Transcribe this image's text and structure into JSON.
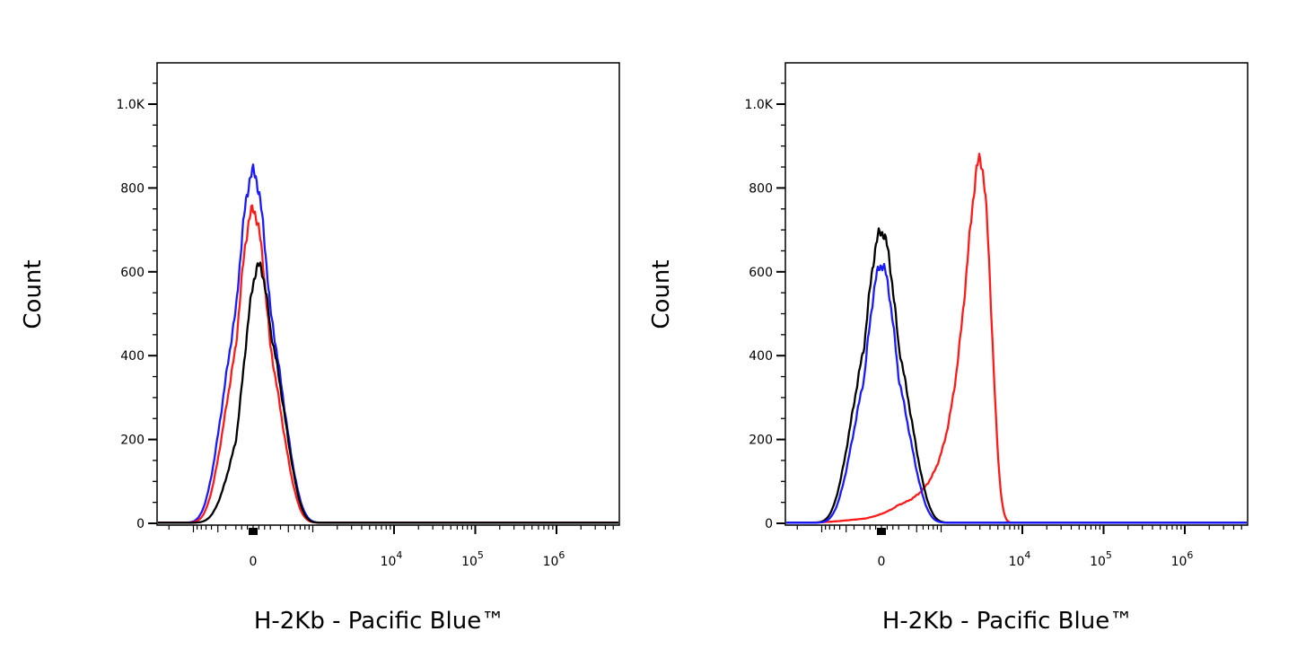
{
  "chart_data": [
    {
      "type": "line",
      "xlabel": "H-2Kb - Pacific Blue™",
      "ylabel": "Count",
      "ylim": [
        0,
        1100
      ],
      "y_ticks": [
        {
          "value": 0,
          "label": "0"
        },
        {
          "value": 200,
          "label": "200"
        },
        {
          "value": 400,
          "label": "400"
        },
        {
          "value": 600,
          "label": "600"
        },
        {
          "value": 800,
          "label": "800"
        },
        {
          "value": 1000,
          "label": "1.0K"
        }
      ],
      "x_scale": "biexponential",
      "x_ticks": [
        {
          "value": 0,
          "label": "0",
          "sup": ""
        },
        {
          "value": 10000,
          "label": "10",
          "sup": "4"
        },
        {
          "value": 100000,
          "label": "10",
          "sup": "5"
        },
        {
          "value": 1000000,
          "label": "10",
          "sup": "6"
        }
      ],
      "grid": false,
      "legend": "none",
      "series": [
        {
          "color": "#1a1aff",
          "mu": 0,
          "sigma": 300,
          "peak": 835
        },
        {
          "color": "#ff1a1a",
          "mu": 0,
          "sigma": 280,
          "peak": 745
        },
        {
          "color": "#000000",
          "mu": 100,
          "sigma": 265,
          "peak": 612
        }
      ]
    },
    {
      "type": "line",
      "xlabel": "H-2Kb - Pacific Blue™",
      "ylabel": "Count",
      "ylim": [
        0,
        1100
      ],
      "y_ticks": [
        {
          "value": 0,
          "label": "0"
        },
        {
          "value": 200,
          "label": "200"
        },
        {
          "value": 400,
          "label": "400"
        },
        {
          "value": 600,
          "label": "600"
        },
        {
          "value": 800,
          "label": "800"
        },
        {
          "value": 1000,
          "label": "1.0K"
        }
      ],
      "x_scale": "biexponential",
      "x_ticks": [
        {
          "value": 0,
          "label": "0",
          "sup": ""
        },
        {
          "value": 10000,
          "label": "10",
          "sup": "4"
        },
        {
          "value": 100000,
          "label": "10",
          "sup": "5"
        },
        {
          "value": 1000000,
          "label": "10",
          "sup": "6"
        }
      ],
      "grid": false,
      "legend": "none",
      "series": [
        {
          "color": "#ff1a1a",
          "mu": 3000,
          "sigma": 1100,
          "peak": 865
        },
        {
          "color": "#000000",
          "mu": 0,
          "sigma": 300,
          "peak": 695
        },
        {
          "color": "#1a1aff",
          "mu": 0,
          "sigma": 280,
          "peak": 615
        }
      ]
    }
  ]
}
